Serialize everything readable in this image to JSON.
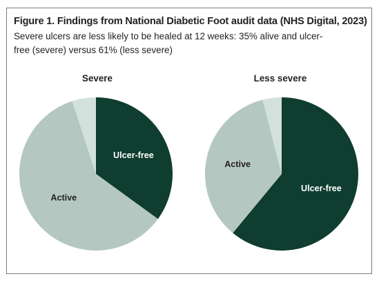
{
  "figure": {
    "title": "Figure 1. Findings from National Diabetic Foot audit data (NHS Digital, 2023)",
    "subtitle": "Severe ulcers are less likely to be healed at 12 weeks: 35% alive and ulcer-free (severe) versus 61% (less severe)"
  },
  "colors": {
    "ulcer_free": "#0f3d30",
    "active": "#b4c8c1",
    "other": "#d3e1dd",
    "label_light": "#ffffff",
    "label_dark": "#231f20",
    "border": "#7a7a7a"
  },
  "chart_data": [
    {
      "type": "pie",
      "title": "Severe",
      "slices": [
        {
          "label": "Ulcer-free",
          "value": 35,
          "color": "#0f3d30",
          "label_color": "#ffffff"
        },
        {
          "label": "Active",
          "value": 60,
          "color": "#b4c8c1",
          "label_color": "#231f20"
        },
        {
          "label": "",
          "value": 5,
          "color": "#d3e1dd",
          "label_color": "#231f20"
        }
      ]
    },
    {
      "type": "pie",
      "title": "Less severe",
      "slices": [
        {
          "label": "Ulcer-free",
          "value": 61,
          "color": "#0f3d30",
          "label_color": "#ffffff"
        },
        {
          "label": "Active",
          "value": 35,
          "color": "#b4c8c1",
          "label_color": "#231f20"
        },
        {
          "label": "",
          "value": 4,
          "color": "#d3e1dd",
          "label_color": "#231f20"
        }
      ]
    }
  ]
}
